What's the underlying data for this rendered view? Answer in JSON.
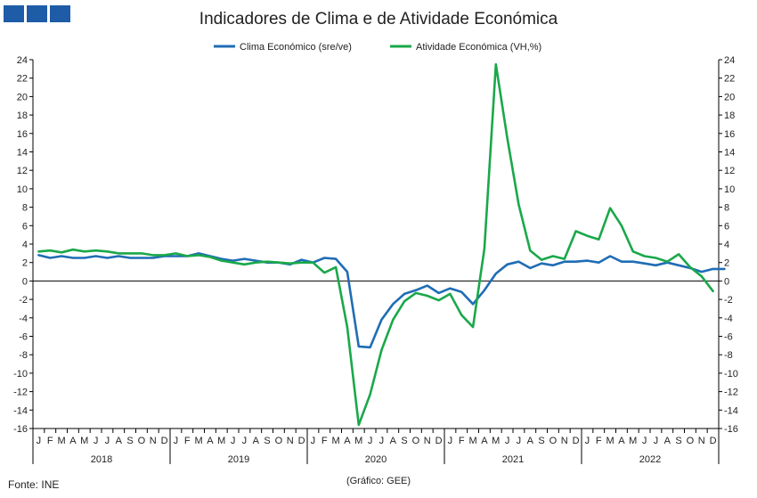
{
  "header": {
    "title": "Indicadores de Clima e de Atividade Económica",
    "logo_icon": "ine-logo-icon"
  },
  "footer": {
    "source": "Fonte: INE",
    "credit": "(Gráfico: GEE)"
  },
  "colors": {
    "clima": "#1f6db5",
    "atividade": "#1aa84a",
    "axis": "#000000"
  },
  "chart_data": {
    "type": "line",
    "title": "Indicadores de Clima e de Atividade Económica",
    "x_unit": "month",
    "start": "2018-01",
    "month_letters": [
      "J",
      "F",
      "M",
      "A",
      "M",
      "J",
      "J",
      "A",
      "S",
      "O",
      "N",
      "D"
    ],
    "years": [
      "2018",
      "2019",
      "2020",
      "2021",
      "2022"
    ],
    "y_ticks": [
      "24",
      "22",
      "20",
      "18",
      "16",
      "14",
      "12",
      "10",
      "8",
      "6",
      "4",
      "2",
      "0",
      "-2",
      "-4",
      "-6",
      "-8",
      "-10",
      "-12",
      "-14",
      "-16"
    ],
    "ylim": [
      -16,
      24
    ],
    "ylim_right": [
      -16,
      24
    ],
    "grid": false,
    "legend_position": "top-center",
    "series": [
      {
        "name": "Clima Económico (sre/ve)",
        "axis": "left",
        "values": [
          2.8,
          2.5,
          2.7,
          2.5,
          2.5,
          2.7,
          2.5,
          2.7,
          2.5,
          2.5,
          2.5,
          2.7,
          2.7,
          2.7,
          3.0,
          2.7,
          2.4,
          2.2,
          2.4,
          2.2,
          2.0,
          2.0,
          1.8,
          2.3,
          2.0,
          2.5,
          2.4,
          1.0,
          -7.1,
          -7.2,
          -4.2,
          -2.5,
          -1.4,
          -1.0,
          -0.5,
          -1.3,
          -0.8,
          -1.2,
          -2.5,
          -1.0,
          0.8,
          1.8,
          2.1,
          1.4,
          1.9,
          1.7,
          2.1,
          2.1,
          2.2,
          2.0,
          2.7,
          2.1,
          2.1,
          1.9,
          1.7,
          2.0,
          1.7,
          1.4,
          1.0,
          1.3,
          1.3
        ]
      },
      {
        "name": "Atividade Económica (VH,%)",
        "axis": "right",
        "values": [
          3.2,
          3.3,
          3.1,
          3.4,
          3.2,
          3.3,
          3.2,
          3.0,
          3.0,
          3.0,
          2.8,
          2.8,
          3.0,
          2.7,
          2.8,
          2.6,
          2.2,
          2.0,
          1.8,
          2.0,
          2.1,
          2.0,
          1.9,
          2.0,
          2.0,
          0.9,
          1.5,
          -5.0,
          -15.6,
          -12.3,
          -7.5,
          -4.2,
          -2.2,
          -1.3,
          -1.6,
          -2.1,
          -1.4,
          -3.7,
          -5.0,
          3.5,
          23.5,
          15.5,
          8.3,
          3.3,
          2.3,
          2.7,
          2.4,
          5.4,
          4.9,
          4.5,
          7.9,
          6.0,
          3.2,
          2.7,
          2.5,
          2.1,
          2.9,
          1.5,
          0.5,
          -1.1
        ]
      }
    ]
  }
}
